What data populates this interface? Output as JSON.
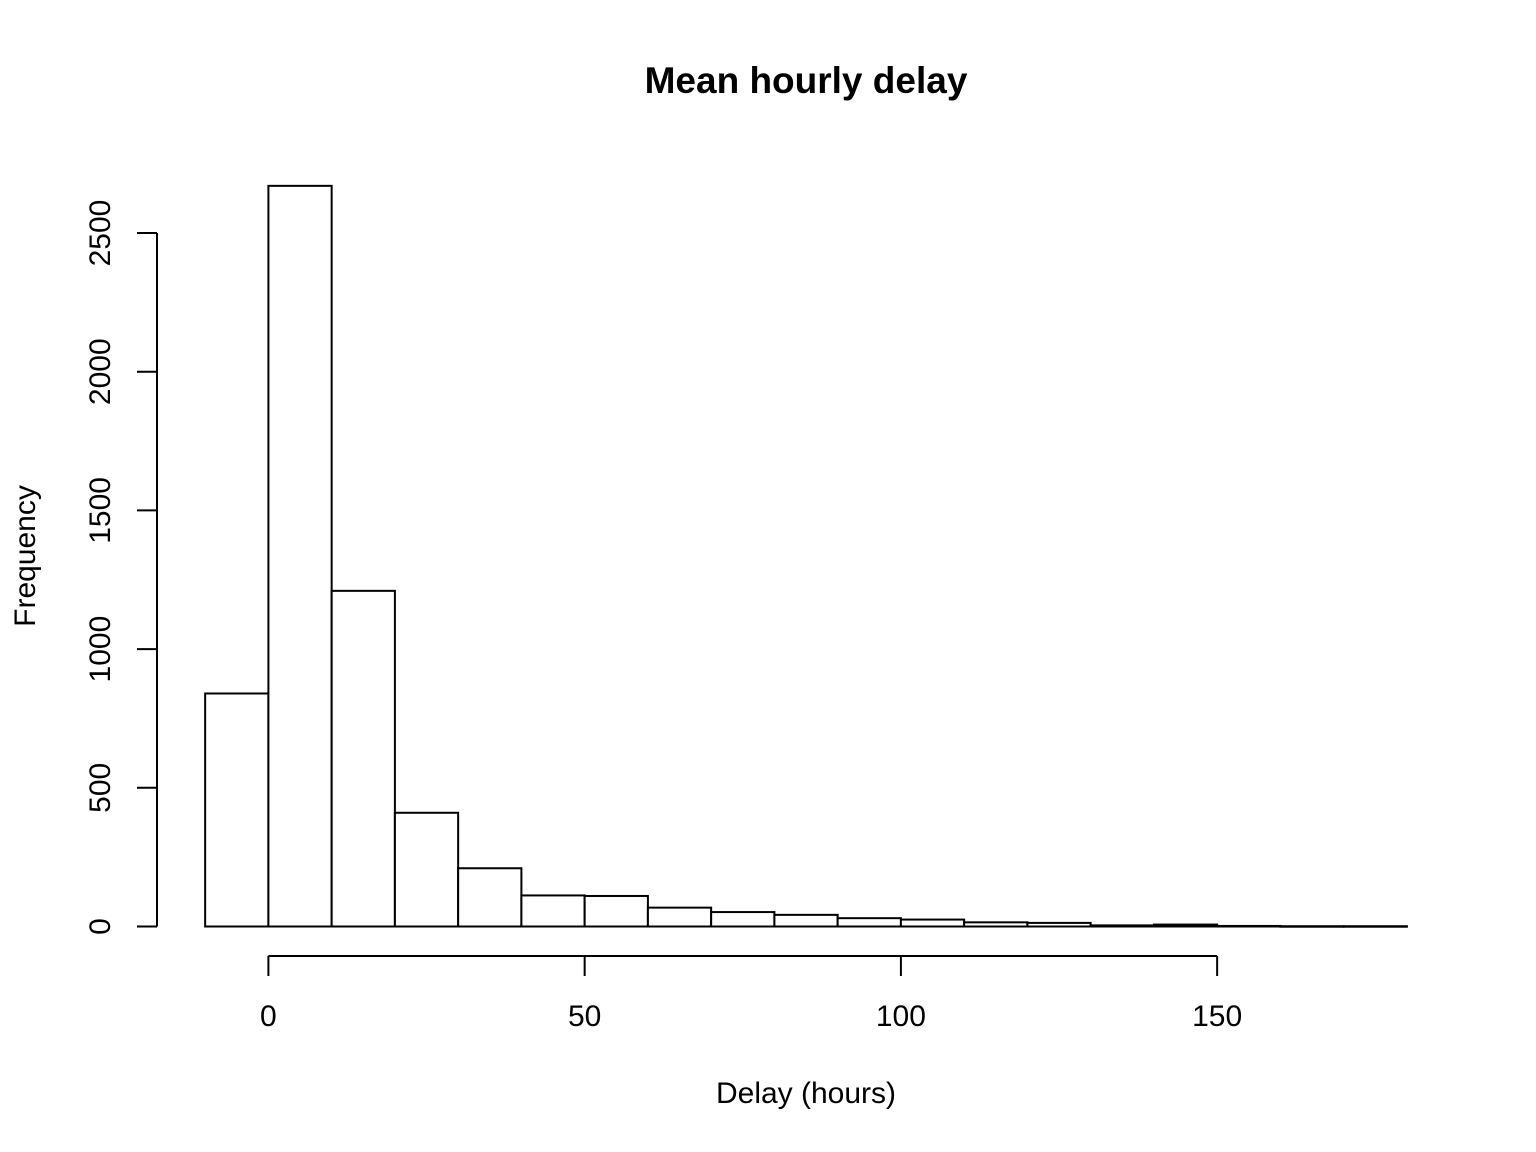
{
  "chart_data": {
    "type": "bar",
    "title": "Mean hourly delay",
    "xlabel": "Delay (hours)",
    "ylabel": "Frequency",
    "bin_edges": [
      -10,
      0,
      10,
      20,
      30,
      40,
      50,
      60,
      70,
      80,
      90,
      100,
      110,
      120,
      130,
      140,
      150,
      160,
      170,
      180
    ],
    "values": [
      840,
      2670,
      1210,
      410,
      210,
      112,
      110,
      68,
      52,
      42,
      30,
      25,
      15,
      13,
      4,
      7,
      2,
      1,
      1
    ],
    "xlim": [
      -10,
      180
    ],
    "ylim": [
      0,
      2670
    ],
    "x_ticks": [
      0,
      50,
      100,
      150
    ],
    "x_tick_labels": [
      "0",
      "50",
      "100",
      "150"
    ],
    "y_ticks": [
      0,
      500,
      1000,
      1500,
      2000,
      2500
    ],
    "y_tick_labels": [
      "0",
      "500",
      "1000",
      "1500",
      "2000",
      "2500"
    ],
    "grid": false,
    "legend": "none"
  }
}
